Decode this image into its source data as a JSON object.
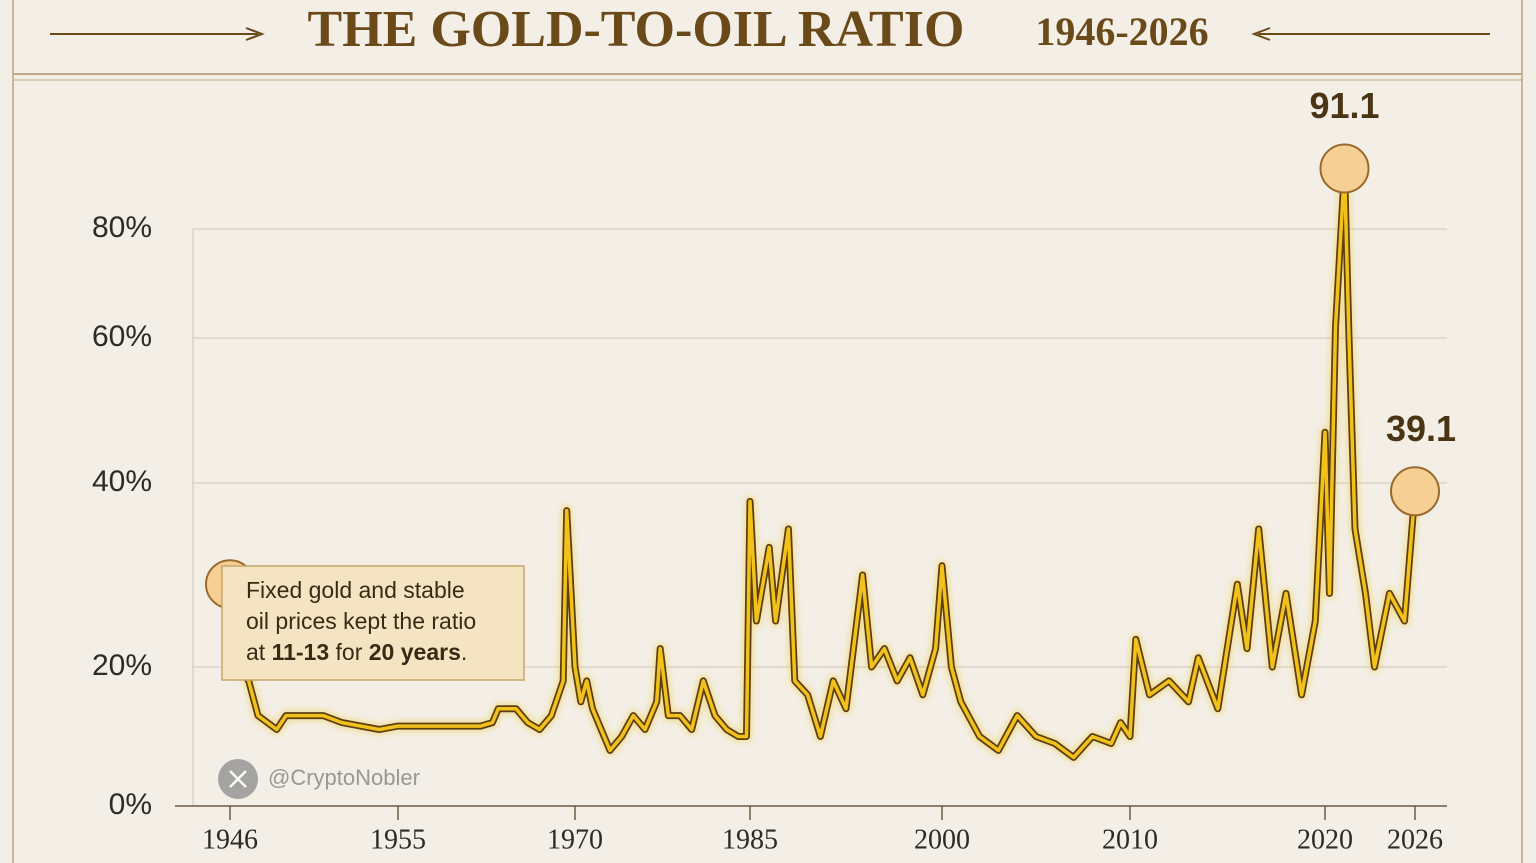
{
  "chart_data": {
    "type": "line",
    "title": "THE GOLD-TO-OIL RATIO",
    "subtitle": "1946-2026",
    "color": "#f2c21b",
    "outline_color": "#5b3f12",
    "grid": true,
    "x": [
      1946,
      1946.5,
      1947,
      1947.5,
      1948.5,
      1949,
      1951,
      1952,
      1954,
      1955,
      1958,
      1960,
      1962,
      1963,
      1963.5,
      1965,
      1966,
      1967,
      1968,
      1969,
      1969.3,
      1970,
      1970.5,
      1971,
      1971.5,
      1972,
      1973,
      1974,
      1975,
      1976,
      1977,
      1977.3,
      1978,
      1979,
      1980,
      1981,
      1982,
      1983,
      1984,
      1984.7,
      1985,
      1985.5,
      1986.5,
      1987,
      1988,
      1988.5,
      1989.5,
      1990.5,
      1991.5,
      1992.5,
      1993.8,
      1994.5,
      1995.5,
      1996.5,
      1997.5,
      1998.5,
      1999.5,
      2000,
      2000.5,
      2001,
      2002,
      2003,
      2004,
      2005,
      2006,
      2007,
      2008,
      2009,
      2009.5,
      2010,
      2010.3,
      2011,
      2012,
      2013,
      2013.5,
      2014.5,
      2015.5,
      2016,
      2016.6,
      2017.3,
      2018,
      2018.8,
      2019.5,
      2020,
      2020.3,
      2020.7,
      2021.3,
      2021.6,
      2022,
      2022.7,
      2023.3,
      2024.3,
      2025.3,
      2026
    ],
    "values": [
      29,
      20,
      18,
      13,
      11,
      13,
      13,
      12,
      11,
      11.5,
      11.5,
      11.5,
      11.5,
      12,
      14,
      14,
      12,
      11,
      13,
      18,
      37,
      20,
      15,
      18,
      14,
      12,
      8,
      10,
      13,
      11,
      15,
      22,
      13,
      13,
      11,
      18,
      13,
      11,
      10,
      10,
      38,
      25,
      33,
      25,
      35,
      18,
      16,
      10,
      18,
      14,
      30,
      20,
      22,
      18,
      21,
      16,
      22,
      31,
      20,
      15,
      10,
      8,
      13,
      10,
      9,
      7,
      10,
      9,
      12,
      10,
      23,
      16,
      18,
      15,
      21,
      14,
      29,
      22,
      35,
      20,
      28,
      16,
      25,
      47,
      28,
      62,
      91.1,
      60,
      35,
      28,
      20,
      28,
      25,
      39.1
    ],
    "xlim": [
      1946,
      2026
    ],
    "xticks": [
      1946,
      1955,
      1970,
      1985,
      2000,
      2010,
      2020,
      2026
    ],
    "ylim": [
      0,
      80
    ],
    "yticks": [
      {
        "value": 0,
        "label": "0%"
      },
      {
        "value": 20,
        "label": "20%"
      },
      {
        "value": 40,
        "label": "40%"
      },
      {
        "value": 60,
        "label": "60%"
      },
      {
        "value": 80,
        "label": "80%"
      }
    ],
    "annotation": {
      "lines": [
        "Fixed gold and stable",
        "oil prices kept the ratio"
      ],
      "last_line": [
        "at ",
        "11-13",
        " for ",
        "20 years",
        "."
      ]
    },
    "watermark": "@CryptoNobler"
  }
}
